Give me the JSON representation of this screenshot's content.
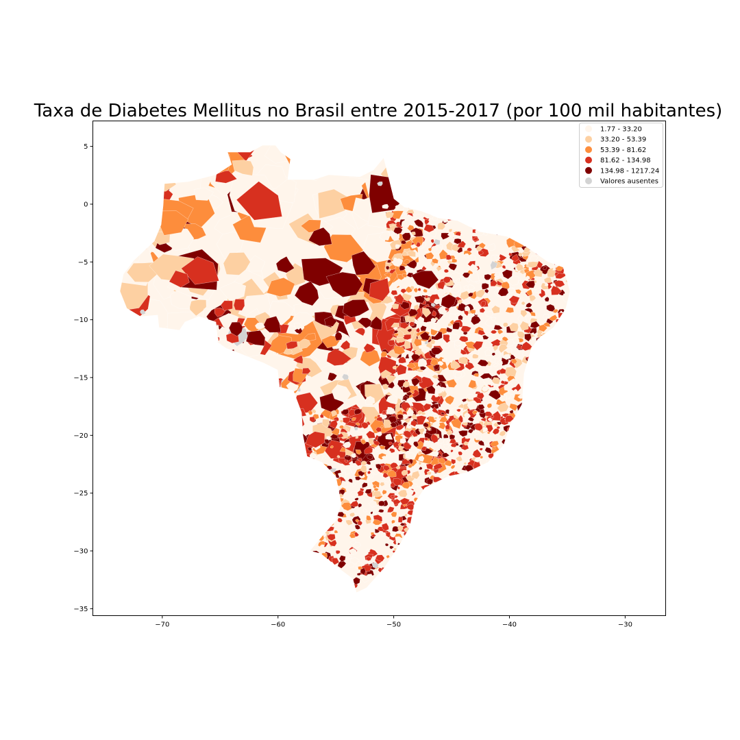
{
  "map": {
    "title": "Taxa de Diabetes Mellitus no Brasil entre 2015-2017 (por 100 mil habitantes)",
    "x_ticks": [
      {
        "value": -70,
        "label": "−70"
      },
      {
        "value": -60,
        "label": "−60"
      },
      {
        "value": -50,
        "label": "−50"
      },
      {
        "value": -40,
        "label": "−40"
      },
      {
        "value": -30,
        "label": "−30"
      }
    ],
    "y_ticks": [
      {
        "value": 5,
        "label": "5"
      },
      {
        "value": 0,
        "label": "0"
      },
      {
        "value": -5,
        "label": "−5"
      },
      {
        "value": -10,
        "label": "−10"
      },
      {
        "value": -15,
        "label": "−15"
      },
      {
        "value": -20,
        "label": "−20"
      },
      {
        "value": -25,
        "label": "−25"
      },
      {
        "value": -30,
        "label": "−30"
      },
      {
        "value": -35,
        "label": "−35"
      }
    ],
    "xlim": [
      -76,
      -26.5
    ],
    "ylim": [
      -35.6,
      7.2
    ],
    "legend": {
      "position": "top-right",
      "entries": [
        {
          "label": "1.77 - 33.20",
          "color": "#fff5eb"
        },
        {
          "label": "33.20 - 53.39",
          "color": "#fdd0a2"
        },
        {
          "label": "53.39 - 81.62",
          "color": "#fd8d3c"
        },
        {
          "label": "81.62 - 134.98",
          "color": "#d7301f"
        },
        {
          "label": "134.98 - 1217.24",
          "color": "#7f0000"
        },
        {
          "label": "Valores ausentes",
          "color": "#d3d3d3"
        }
      ]
    }
  }
}
